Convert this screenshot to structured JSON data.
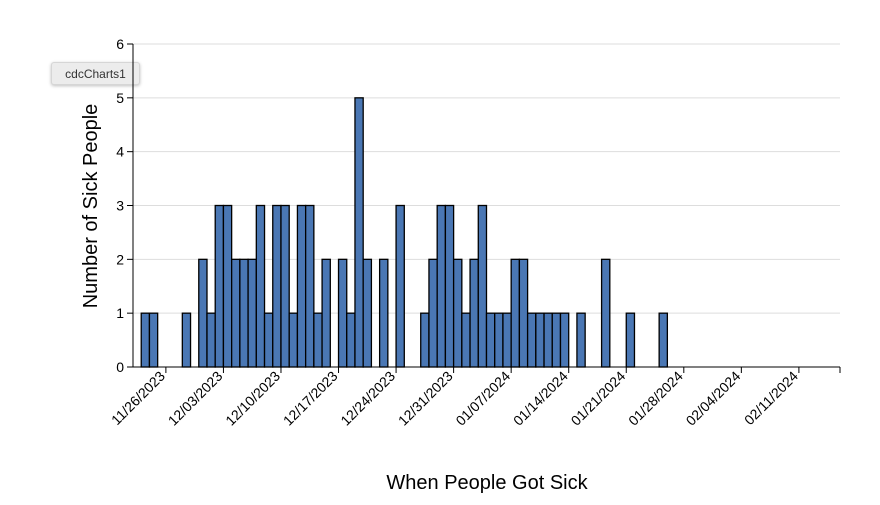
{
  "tooltip": {
    "label": "cdcCharts1"
  },
  "colors": {
    "bar_fill": "#4a77b4",
    "bar_stroke": "#000000",
    "grid": "#dddddd",
    "axis": "#000000"
  },
  "chart_data": {
    "type": "bar",
    "xlabel": "When People Got Sick",
    "ylabel": "Number of Sick People",
    "ylim": [
      0,
      6
    ],
    "y_ticks": [
      "0",
      "1",
      "2",
      "3",
      "4",
      "5",
      "6"
    ],
    "x_ticks": [
      "11/26/2023",
      "12/03/2023",
      "12/10/2023",
      "12/17/2023",
      "12/24/2023",
      "12/31/2023",
      "01/07/2024",
      "01/14/2024",
      "01/21/2024",
      "01/28/2024",
      "02/04/2024",
      "02/11/2024"
    ],
    "x_range": [
      "11/22/2023",
      "02/16/2024"
    ],
    "grid": true,
    "bar_interval": "day",
    "dates": [
      "11/23/2023",
      "11/24/2023",
      "11/28/2023",
      "11/30/2023",
      "12/01/2023",
      "12/02/2023",
      "12/03/2023",
      "12/04/2023",
      "12/05/2023",
      "12/06/2023",
      "12/07/2023",
      "12/08/2023",
      "12/09/2023",
      "12/10/2023",
      "12/11/2023",
      "12/12/2023",
      "12/13/2023",
      "12/14/2023",
      "12/15/2023",
      "12/17/2023",
      "12/18/2023",
      "12/19/2023",
      "12/20/2023",
      "12/22/2023",
      "12/24/2023",
      "12/27/2023",
      "12/28/2023",
      "12/29/2023",
      "12/30/2023",
      "12/31/2023",
      "01/01/2024",
      "01/02/2024",
      "01/03/2024",
      "01/04/2024",
      "01/05/2024",
      "01/06/2024",
      "01/07/2024",
      "01/08/2024",
      "01/09/2024",
      "01/10/2024",
      "01/11/2024",
      "01/12/2024",
      "01/13/2024",
      "01/15/2024",
      "01/18/2024",
      "01/21/2024",
      "01/25/2024"
    ],
    "values": [
      1,
      1,
      1,
      2,
      1,
      3,
      3,
      2,
      2,
      2,
      3,
      1,
      3,
      3,
      1,
      3,
      3,
      1,
      2,
      2,
      1,
      5,
      2,
      2,
      3,
      1,
      2,
      3,
      3,
      2,
      1,
      2,
      3,
      1,
      1,
      1,
      2,
      2,
      1,
      1,
      1,
      1,
      1,
      1,
      2,
      1,
      1
    ]
  }
}
